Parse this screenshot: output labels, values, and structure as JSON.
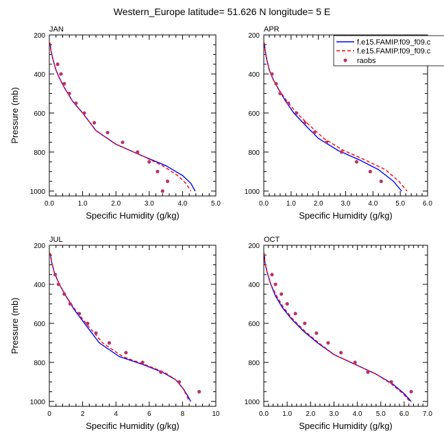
{
  "figure": {
    "title": "Western_Europe  latitude= 51.626 N longitude= 5 E"
  },
  "colors": {
    "series1": "#0000ff",
    "series2": "#ff0000",
    "obs": "#b8336a"
  },
  "legend": {
    "placement": "top-right of APR panel",
    "entries": [
      "f.e15.FAMIP.f09_f09.c",
      "f.e15.FAMIP.f09_f09.c",
      "raobs"
    ]
  },
  "chart_data": [
    {
      "type": "line",
      "title": "JAN",
      "xlabel": "Specific Humidity (g/kg)",
      "ylabel": "Pressure (mb)",
      "xlim": [
        0,
        5
      ],
      "ylim": [
        200,
        1025
      ],
      "y_inverted": true,
      "xticks": [
        0,
        1,
        2,
        3,
        4,
        5
      ],
      "xtick_labels": [
        "0.0",
        "1.0",
        "2.0",
        "3.0",
        "4.0",
        "5.0"
      ],
      "yticks": [
        200,
        400,
        600,
        800,
        1000
      ],
      "series": [
        {
          "name": "f.e15.FAMIP.f09_f09.c",
          "style": "solid",
          "x": [
            0.02,
            0.05,
            0.1,
            0.2,
            0.3,
            0.45,
            0.7,
            1.0,
            1.4,
            2.0,
            2.8,
            3.5,
            4.0,
            4.25,
            4.38
          ],
          "y": [
            240,
            280,
            320,
            380,
            420,
            470,
            540,
            600,
            690,
            760,
            820,
            870,
            920,
            960,
            1000
          ]
        },
        {
          "name": "f.e15.FAMIP.f09_f09.c",
          "style": "dashed",
          "x": [
            0.02,
            0.05,
            0.1,
            0.2,
            0.3,
            0.45,
            0.7,
            1.0,
            1.4,
            2.0,
            2.8,
            3.4,
            3.85,
            4.1,
            4.25
          ],
          "y": [
            240,
            280,
            320,
            380,
            420,
            470,
            540,
            600,
            690,
            760,
            820,
            870,
            920,
            960,
            1000
          ]
        },
        {
          "name": "raobs",
          "style": "markers",
          "x": [
            0.25,
            0.35,
            0.45,
            0.6,
            0.8,
            1.05,
            1.35,
            1.75,
            2.2,
            2.65,
            3.0,
            3.25,
            3.55,
            3.4
          ],
          "y": [
            350,
            400,
            450,
            500,
            550,
            600,
            650,
            700,
            750,
            800,
            850,
            900,
            950,
            1000
          ]
        }
      ]
    },
    {
      "type": "line",
      "title": "APR",
      "xlabel": "Specific Humidity (g/kg)",
      "ylabel": "",
      "xlim": [
        0,
        6
      ],
      "ylim": [
        200,
        1025
      ],
      "y_inverted": true,
      "xticks": [
        0,
        1,
        2,
        3,
        4,
        5,
        6
      ],
      "xtick_labels": [
        "0.0",
        "1.0",
        "2.0",
        "3.0",
        "4.0",
        "5.0",
        "6.0"
      ],
      "yticks": [
        200,
        400,
        600,
        800,
        1000
      ],
      "series": [
        {
          "name": "f.e15.FAMIP.f09_f09.c",
          "style": "solid",
          "x": [
            0.02,
            0.05,
            0.1,
            0.2,
            0.35,
            0.55,
            0.8,
            1.1,
            1.5,
            2.0,
            2.7,
            3.5,
            4.2,
            4.75,
            5.05
          ],
          "y": [
            240,
            280,
            320,
            380,
            430,
            480,
            540,
            600,
            660,
            730,
            790,
            840,
            890,
            950,
            1000
          ]
        },
        {
          "name": "f.e15.FAMIP.f09_f09.c",
          "style": "dashed",
          "x": [
            0.02,
            0.05,
            0.1,
            0.2,
            0.35,
            0.55,
            0.85,
            1.2,
            1.65,
            2.2,
            2.9,
            3.7,
            4.45,
            4.95,
            5.25
          ],
          "y": [
            240,
            280,
            320,
            380,
            430,
            480,
            540,
            600,
            660,
            730,
            790,
            840,
            890,
            950,
            1000
          ]
        },
        {
          "name": "raobs",
          "style": "markers",
          "x": [
            0.3,
            0.45,
            0.6,
            0.9,
            1.2,
            1.5,
            1.85,
            2.3,
            2.85,
            3.4,
            3.9,
            4.3
          ],
          "y": [
            400,
            450,
            500,
            550,
            600,
            650,
            700,
            750,
            800,
            850,
            900,
            950
          ]
        }
      ]
    },
    {
      "type": "line",
      "title": "JUL",
      "xlabel": "Specific Humidity (g/kg)",
      "ylabel": "Pressure (mb)",
      "xlim": [
        0,
        10
      ],
      "ylim": [
        200,
        1025
      ],
      "y_inverted": true,
      "xticks": [
        0,
        2,
        4,
        6,
        8,
        10
      ],
      "xtick_labels": [
        "0",
        "2",
        "4",
        "6",
        "8",
        "10"
      ],
      "yticks": [
        200,
        400,
        600,
        800,
        1000
      ],
      "series": [
        {
          "name": "f.e15.FAMIP.f09_f09.c",
          "style": "solid",
          "x": [
            0.05,
            0.15,
            0.3,
            0.6,
            1.0,
            1.5,
            2.2,
            3.0,
            4.2,
            5.6,
            6.8,
            7.6,
            8.0,
            8.3,
            8.5
          ],
          "y": [
            240,
            290,
            340,
            400,
            460,
            530,
            610,
            700,
            770,
            810,
            850,
            890,
            930,
            970,
            1000
          ]
        },
        {
          "name": "f.e15.FAMIP.f09_f09.c",
          "style": "dashed",
          "x": [
            0.05,
            0.15,
            0.3,
            0.6,
            1.0,
            1.55,
            2.3,
            3.2,
            4.4,
            5.7,
            6.9,
            7.6,
            8.0,
            8.25,
            8.4
          ],
          "y": [
            240,
            290,
            340,
            400,
            460,
            530,
            610,
            700,
            770,
            810,
            850,
            890,
            930,
            970,
            1000
          ]
        },
        {
          "name": "raobs",
          "style": "markers",
          "x": [
            0.35,
            0.55,
            0.9,
            1.25,
            1.8,
            2.3,
            2.8,
            3.6,
            4.6,
            5.6,
            6.7,
            7.8,
            9.0
          ],
          "y": [
            350,
            400,
            450,
            500,
            550,
            600,
            650,
            700,
            750,
            800,
            850,
            900,
            950
          ]
        }
      ]
    },
    {
      "type": "line",
      "title": "OCT",
      "xlabel": "Specific Humidity (g/kg)",
      "ylabel": "",
      "xlim": [
        0,
        7
      ],
      "ylim": [
        200,
        1025
      ],
      "y_inverted": true,
      "xticks": [
        0,
        1,
        2,
        3,
        4,
        5,
        6,
        7
      ],
      "xtick_labels": [
        "0.0",
        "1.0",
        "2.0",
        "3.0",
        "4.0",
        "5.0",
        "6.0",
        "7.0"
      ],
      "yticks": [
        200,
        400,
        600,
        800,
        1000
      ],
      "series": [
        {
          "name": "f.e15.FAMIP.f09_f09.c",
          "style": "solid",
          "x": [
            0.02,
            0.05,
            0.15,
            0.3,
            0.5,
            0.8,
            1.2,
            1.7,
            2.3,
            3.0,
            3.9,
            4.8,
            5.5,
            6.0,
            6.3
          ],
          "y": [
            240,
            290,
            340,
            400,
            460,
            520,
            580,
            640,
            700,
            760,
            810,
            860,
            910,
            960,
            1000
          ]
        },
        {
          "name": "f.e15.FAMIP.f09_f09.c",
          "style": "dashed",
          "x": [
            0.02,
            0.05,
            0.15,
            0.3,
            0.55,
            0.85,
            1.25,
            1.75,
            2.35,
            3.0,
            3.9,
            4.8,
            5.45,
            5.95,
            6.25
          ],
          "y": [
            240,
            290,
            340,
            400,
            460,
            520,
            580,
            640,
            700,
            760,
            810,
            860,
            910,
            960,
            1000
          ]
        },
        {
          "name": "raobs",
          "style": "markers",
          "x": [
            0.35,
            0.5,
            0.75,
            1.0,
            1.35,
            1.75,
            2.25,
            2.75,
            3.3,
            3.9,
            4.45,
            5.45,
            6.3
          ],
          "y": [
            350,
            400,
            450,
            500,
            550,
            600,
            650,
            700,
            750,
            800,
            850,
            900,
            950
          ]
        }
      ]
    }
  ]
}
